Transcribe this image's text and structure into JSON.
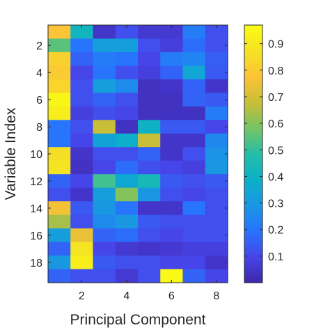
{
  "chart_data": {
    "type": "heatmap",
    "xlabel": "Principal Component",
    "ylabel": "Variable Index",
    "x_categories": [
      1,
      2,
      3,
      4,
      5,
      6,
      7,
      8
    ],
    "y_categories": [
      1,
      2,
      3,
      4,
      5,
      6,
      7,
      8,
      9,
      10,
      11,
      12,
      13,
      14,
      15,
      16,
      17,
      18,
      19
    ],
    "x_tick_labels": [
      "2",
      "4",
      "6",
      "8"
    ],
    "y_tick_labels": [
      "2",
      "4",
      "6",
      "8",
      "10",
      "12",
      "14",
      "16",
      "18"
    ],
    "values": [
      [
        0.78,
        0.42,
        0.05,
        0.12,
        0.06,
        0.06,
        0.22,
        0.12
      ],
      [
        0.55,
        0.2,
        0.32,
        0.32,
        0.12,
        0.08,
        0.18,
        0.12
      ],
      [
        0.82,
        0.16,
        0.22,
        0.2,
        0.1,
        0.22,
        0.24,
        0.15
      ],
      [
        0.8,
        0.1,
        0.2,
        0.12,
        0.08,
        0.16,
        0.35,
        0.14
      ],
      [
        0.83,
        0.12,
        0.32,
        0.26,
        0.04,
        0.05,
        0.16,
        0.05
      ],
      [
        0.95,
        0.12,
        0.16,
        0.12,
        0.04,
        0.04,
        0.16,
        0.14
      ],
      [
        0.92,
        0.08,
        0.12,
        0.1,
        0.04,
        0.04,
        0.04,
        0.22
      ],
      [
        0.2,
        0.12,
        0.68,
        0.04,
        0.4,
        0.14,
        0.14,
        0.1
      ],
      [
        0.2,
        0.1,
        0.34,
        0.38,
        0.68,
        0.05,
        0.05,
        0.25
      ],
      [
        0.86,
        0.05,
        0.12,
        0.12,
        0.16,
        0.05,
        0.12,
        0.28
      ],
      [
        0.88,
        0.04,
        0.1,
        0.18,
        0.12,
        0.1,
        0.08,
        0.3
      ],
      [
        0.16,
        0.1,
        0.52,
        0.36,
        0.44,
        0.14,
        0.12,
        0.14
      ],
      [
        0.12,
        0.05,
        0.32,
        0.6,
        0.3,
        0.12,
        0.1,
        0.12
      ],
      [
        0.76,
        0.14,
        0.3,
        0.2,
        0.05,
        0.05,
        0.2,
        0.12
      ],
      [
        0.64,
        0.12,
        0.26,
        0.3,
        0.14,
        0.12,
        0.12,
        0.12
      ],
      [
        0.32,
        0.74,
        0.16,
        0.18,
        0.12,
        0.1,
        0.12,
        0.12
      ],
      [
        0.16,
        0.88,
        0.1,
        0.06,
        0.05,
        0.06,
        0.08,
        0.08
      ],
      [
        0.3,
        0.92,
        0.14,
        0.12,
        0.12,
        0.1,
        0.1,
        0.05
      ],
      [
        0.16,
        0.12,
        0.12,
        0.06,
        0.12,
        0.96,
        0.16,
        0.1
      ]
    ],
    "colorbar": {
      "min": 0,
      "max": 0.97,
      "tick_values": [
        0.1,
        0.2,
        0.3,
        0.4,
        0.5,
        0.6,
        0.7,
        0.8,
        0.9
      ],
      "tick_labels": [
        "0.1",
        "0.2",
        "0.3",
        "0.4",
        "0.5",
        "0.6",
        "0.7",
        "0.8",
        "0.9"
      ]
    },
    "colormap": "parula",
    "grid": false
  }
}
